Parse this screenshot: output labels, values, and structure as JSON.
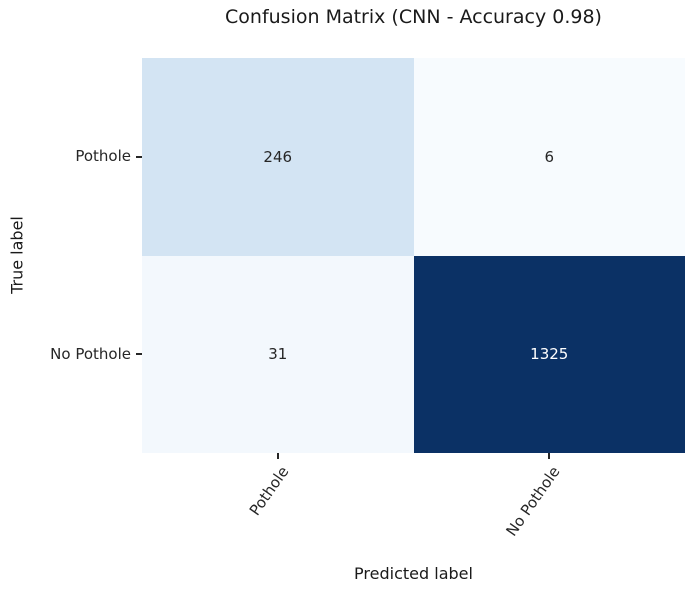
{
  "chart_data": {
    "type": "heatmap",
    "title": "Confusion Matrix (CNN - Accuracy 0.98)",
    "xlabel": "Predicted label",
    "ylabel": "True label",
    "x_categories": [
      "Pothole",
      "No Pothole"
    ],
    "y_categories": [
      "Pothole",
      "No Pothole"
    ],
    "values": [
      [
        246,
        6
      ],
      [
        31,
        1325
      ]
    ],
    "colormap": "Blues",
    "value_range": [
      6,
      1325
    ],
    "cell_colors": [
      [
        "#d3e4f3",
        "#f7fbfe"
      ],
      [
        "#f3f8fd",
        "#0b3165"
      ]
    ],
    "cell_text_colors": [
      [
        "#262626",
        "#262626"
      ],
      [
        "#262626",
        "#ffffff"
      ]
    ],
    "legend": "none",
    "grid": false,
    "xtick_rotation_deg": 55
  }
}
